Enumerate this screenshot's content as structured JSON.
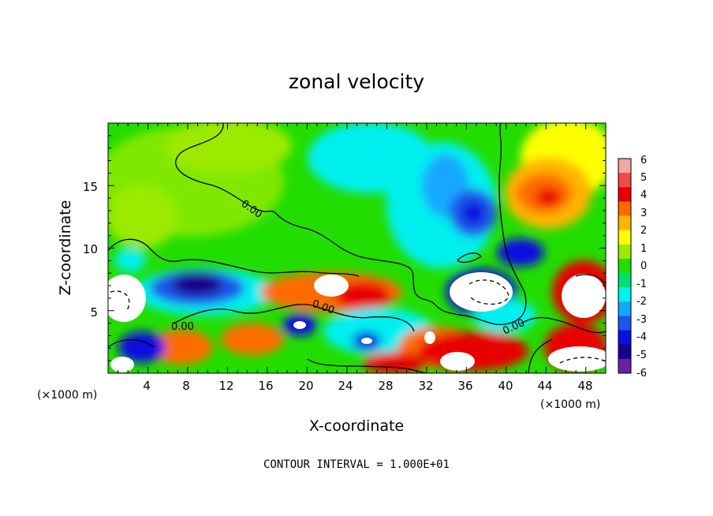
{
  "chart_data": {
    "type": "heatmap",
    "title": "zonal velocity",
    "xlabel": "X-coordinate",
    "ylabel": "Z-coordinate",
    "x_unit_label": "(×1000 m)",
    "x_unit_label_right": "(×1000 m)",
    "xlim": [
      0,
      50
    ],
    "ylim": [
      0,
      20
    ],
    "x_ticks": [
      "4",
      "8",
      "12",
      "16",
      "20",
      "24",
      "28",
      "32",
      "36",
      "40",
      "44",
      "48"
    ],
    "y_ticks": [
      "5",
      "10",
      "15"
    ],
    "colorbar": {
      "ticks": [
        "6",
        "5",
        "4",
        "3",
        "2",
        "1",
        "0",
        "-1",
        "-2",
        "-3",
        "-4",
        "-5",
        "-6"
      ],
      "colors": [
        "#f2a6a6",
        "#f04a4a",
        "#e80000",
        "#ff6a00",
        "#ffb400",
        "#ffff00",
        "#9bea00",
        "#22dd00",
        "#00e070",
        "#00f0f0",
        "#12a8ff",
        "#1a57e8",
        "#0a10e0",
        "#1a008c",
        "#6a1fa8"
      ]
    },
    "contour_labels": [
      "0.00",
      "0.00",
      "0.00",
      "0.00"
    ],
    "annotation": "CONTOUR INTERVAL = 1.000E+01"
  }
}
